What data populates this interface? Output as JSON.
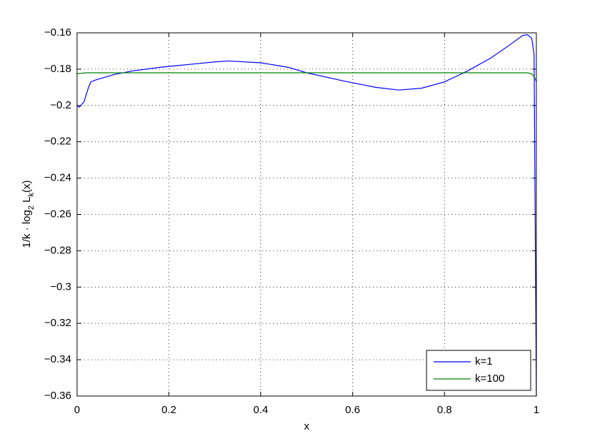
{
  "chart_data": {
    "type": "line",
    "xlabel": "x",
    "ylabel": [
      "1/k · log",
      "2",
      " L",
      "k",
      "(x)"
    ],
    "xlim": [
      0,
      1
    ],
    "xticks": [
      0,
      0.2,
      0.4,
      0.6,
      0.8,
      1
    ],
    "ylim": [
      -0.36,
      -0.16
    ],
    "yticks": [
      {
        "value": -0.36,
        "label": "−0.36"
      },
      {
        "value": -0.34,
        "label": "−0.34"
      },
      {
        "value": -0.32,
        "label": "−0.32"
      },
      {
        "value": -0.3,
        "label": "−0.3"
      },
      {
        "value": -0.28,
        "label": "−0.28"
      },
      {
        "value": -0.26,
        "label": "−0.26"
      },
      {
        "value": -0.24,
        "label": "−0.24"
      },
      {
        "value": -0.22,
        "label": "−0.22"
      },
      {
        "value": -0.2,
        "label": "−0.2"
      },
      {
        "value": -0.18,
        "label": "−0.18"
      },
      {
        "value": -0.16,
        "label": "−0.16"
      }
    ],
    "grid": true,
    "legend": "lower-right",
    "series": [
      {
        "name": "k=1",
        "color": "#0000ff",
        "x": [
          0,
          0.005,
          0.015,
          0.025,
          0.03,
          0.04,
          0.08,
          0.12,
          0.18,
          0.24,
          0.3,
          0.33,
          0.4,
          0.46,
          0.5,
          0.58,
          0.65,
          0.7,
          0.75,
          0.8,
          0.85,
          0.9,
          0.94,
          0.97,
          0.98,
          0.99,
          0.995,
          1
        ],
        "values": [
          -0.2,
          -0.201,
          -0.198,
          -0.19,
          -0.187,
          -0.186,
          -0.183,
          -0.181,
          -0.179,
          -0.1775,
          -0.176,
          -0.1755,
          -0.1765,
          -0.179,
          -0.182,
          -0.1865,
          -0.19,
          -0.1915,
          -0.1905,
          -0.187,
          -0.181,
          -0.174,
          -0.167,
          -0.1615,
          -0.161,
          -0.163,
          -0.172,
          -0.36
        ]
      },
      {
        "name": "k=100",
        "color": "#008000",
        "x": [
          0,
          0.02,
          0.2,
          0.5,
          0.8,
          0.98,
          0.99,
          0.997,
          1
        ],
        "values": [
          -0.1825,
          -0.182,
          -0.182,
          -0.182,
          -0.182,
          -0.182,
          -0.1825,
          -0.185,
          -0.187
        ]
      }
    ]
  }
}
